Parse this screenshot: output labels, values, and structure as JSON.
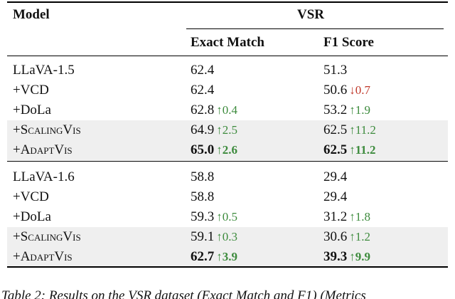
{
  "header": {
    "model": "Model",
    "group": "VSR",
    "em": "Exact Match",
    "f1": "F1 Score"
  },
  "groups": [
    {
      "rows": [
        {
          "model": "LLaVA-1.5",
          "em": "62.4",
          "f1": "51.3"
        },
        {
          "model": "+VCD",
          "em": "62.4",
          "f1": "50.6",
          "f1_delta": "↓0.7"
        },
        {
          "model": "+DoLa",
          "em": "62.8",
          "em_delta": "↑0.4",
          "f1": "53.2",
          "f1_delta": "↑1.9"
        },
        {
          "model": "+ScalingVis",
          "em": "64.9",
          "em_delta": "↑2.5",
          "f1": "62.5",
          "f1_delta": "↑11.2",
          "shaded": true
        },
        {
          "model": "+AdaptVis",
          "em": "65.0",
          "em_delta": "↑2.6",
          "f1": "62.5",
          "f1_delta": "↑11.2",
          "shaded": true,
          "bold": true
        }
      ]
    },
    {
      "rows": [
        {
          "model": "LLaVA-1.6",
          "em": "58.8",
          "f1": "29.4"
        },
        {
          "model": "+VCD",
          "em": "58.8",
          "f1": "29.4"
        },
        {
          "model": "+DoLa",
          "em": "59.3",
          "em_delta": "↑0.5",
          "f1": "31.2",
          "f1_delta": "↑1.8"
        },
        {
          "model": "+ScalingVis",
          "em": "59.1",
          "em_delta": "↑0.3",
          "f1": "30.6",
          "f1_delta": "↑1.2",
          "shaded": true
        },
        {
          "model": "+AdaptVis",
          "em": "62.7",
          "em_delta": "↑3.9",
          "f1": "39.3",
          "f1_delta": "↑9.9",
          "shaded": true,
          "bold": true
        }
      ]
    }
  ],
  "caption": "Table 2: Results on the VSR dataset (Exact Match and F1) (Metrics"
}
